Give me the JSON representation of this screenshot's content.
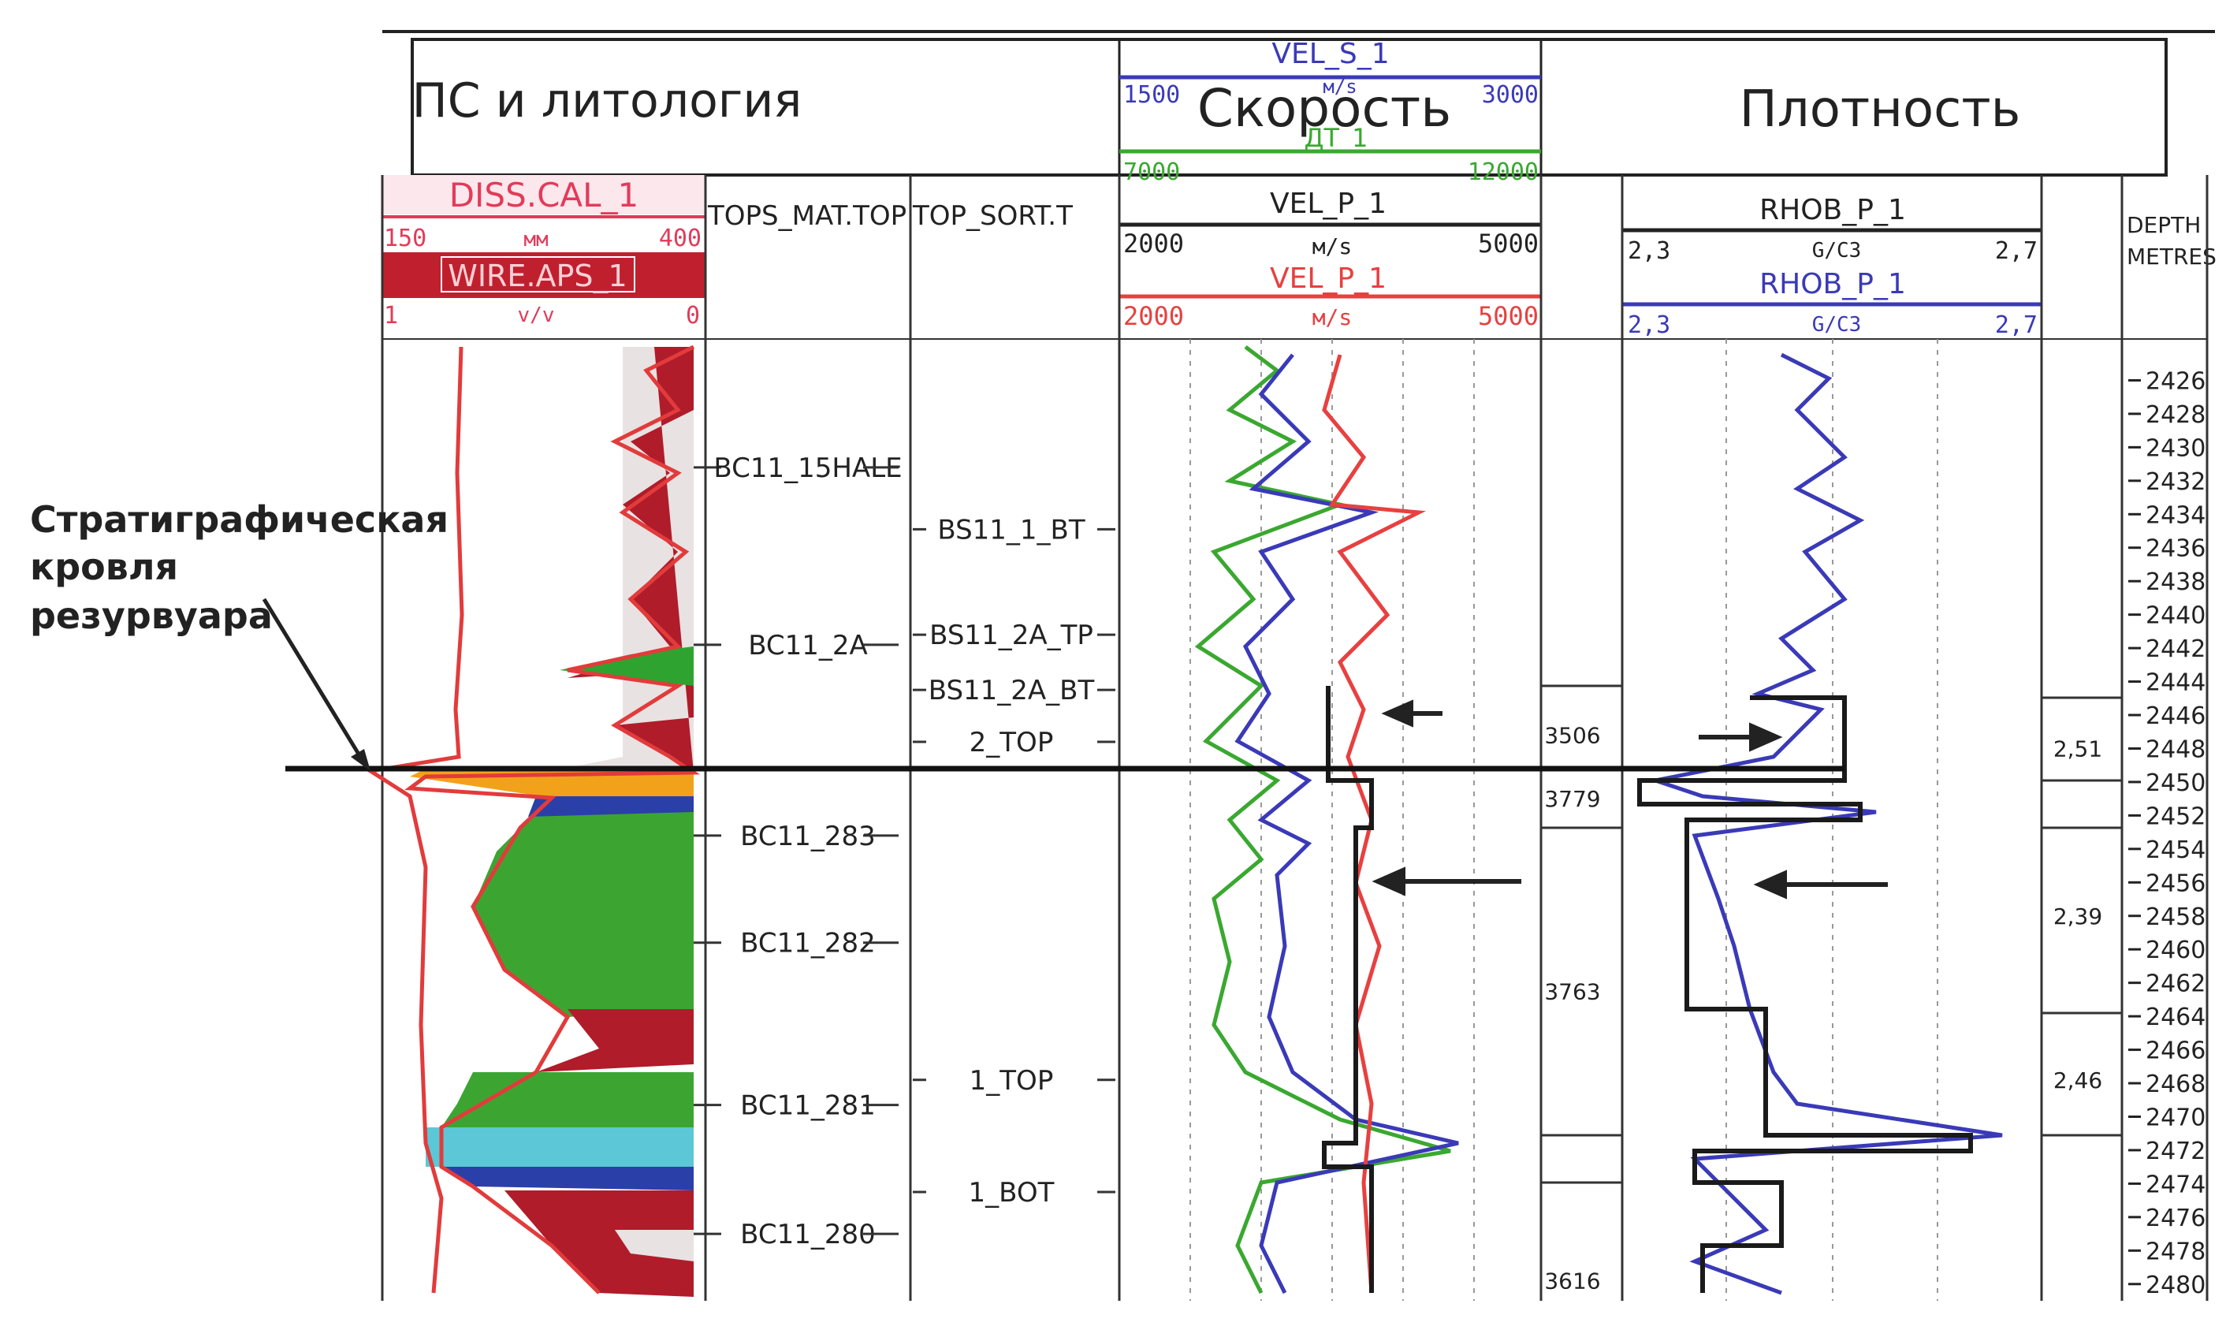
{
  "chart_data": {
    "type": "line",
    "panels": {
      "lithology": {
        "title": "ПС и литология",
        "curves": [
          {
            "name": "DISS.CAL_1",
            "unit": "мм",
            "min": "150",
            "max": "400",
            "color": "#e23b5a"
          },
          {
            "name": "WIRE.APS_1",
            "unit": "v/v",
            "min": "1",
            "max": "0",
            "color": "#c0202e"
          }
        ]
      },
      "tops_headers": [
        "TOPS_MAT.TOP",
        "TOP_SORT.T"
      ],
      "velocity": {
        "title": "Скорость",
        "curves": [
          {
            "name": "VEL_S_1",
            "unit": "м/s",
            "min": "1500",
            "max": "3000",
            "color": "#3a3ab8"
          },
          {
            "name": "ДТ_1",
            "unit": "",
            "min": "7000",
            "max": "12000",
            "color": "#3aa830"
          },
          {
            "name": "VEL_P_1",
            "unit": "м/s",
            "min": "2000",
            "max": "5000",
            "color": "#222222"
          },
          {
            "name": "VEL_P_1",
            "unit": "м/s",
            "min": "2000",
            "max": "5000",
            "color": "#e84040"
          }
        ]
      },
      "density": {
        "title": "Плотность",
        "curves": [
          {
            "name": "RHOB_P_1",
            "unit": "G/C3",
            "min": "2,3",
            "max": "2,7",
            "color": "#222222"
          },
          {
            "name": "RHOB_P_1",
            "unit": "G/C3",
            "min": "2,3",
            "max": "2,7",
            "color": "#3a3ab8"
          }
        ]
      },
      "depth": {
        "label_1": "DEPTH",
        "label_2": "METRES"
      }
    },
    "depth_ticks": [
      2426,
      2428,
      2430,
      2432,
      2434,
      2436,
      2438,
      2440,
      2442,
      2444,
      2446,
      2448,
      2450,
      2452,
      2454,
      2456,
      2458,
      2460,
      2462,
      2464,
      2466,
      2468,
      2470,
      2472,
      2474,
      2476,
      2478,
      2480
    ],
    "depth_range": [
      2424,
      2481
    ],
    "tops_mat": [
      {
        "name": "BC11_15HALE",
        "depth": 2431.2
      },
      {
        "name": "BC11_2A",
        "depth": 2441.8
      },
      {
        "name": "BC11_283",
        "depth": 2453.2
      },
      {
        "name": "BC11_282",
        "depth": 2459.6
      },
      {
        "name": "BC11_281",
        "depth": 2469.3
      },
      {
        "name": "BC11_280",
        "depth": 2477.0
      }
    ],
    "tops_sort": [
      {
        "name": "BS11_1_BT",
        "depth": 2434.9
      },
      {
        "name": "BS11_2A_TP",
        "depth": 2441.2
      },
      {
        "name": "BS11_2A_BT",
        "depth": 2444.5
      },
      {
        "name": "2_TOP",
        "depth": 2447.6
      },
      {
        "name": "1_TOP",
        "depth": 2467.8
      },
      {
        "name": "1_BOT",
        "depth": 2474.5
      }
    ],
    "velocity_blocks": [
      {
        "value": "3506",
        "depth": 2447.2
      },
      {
        "value": "3779",
        "depth": 2451.0
      },
      {
        "value": "3763",
        "depth": 2462.5
      },
      {
        "value": "3616",
        "depth": 2479.8
      }
    ],
    "density_blocks": [
      {
        "value": "2,51",
        "depth": 2448.0
      },
      {
        "value": "2,39",
        "depth": 2458.0
      },
      {
        "value": "2,46",
        "depth": 2467.8
      }
    ],
    "stratigraphic_top_depth": 2449.6,
    "annotation": {
      "line1": "Стратиграфическая",
      "line2": "кровля",
      "line3": "резурвуара"
    }
  }
}
